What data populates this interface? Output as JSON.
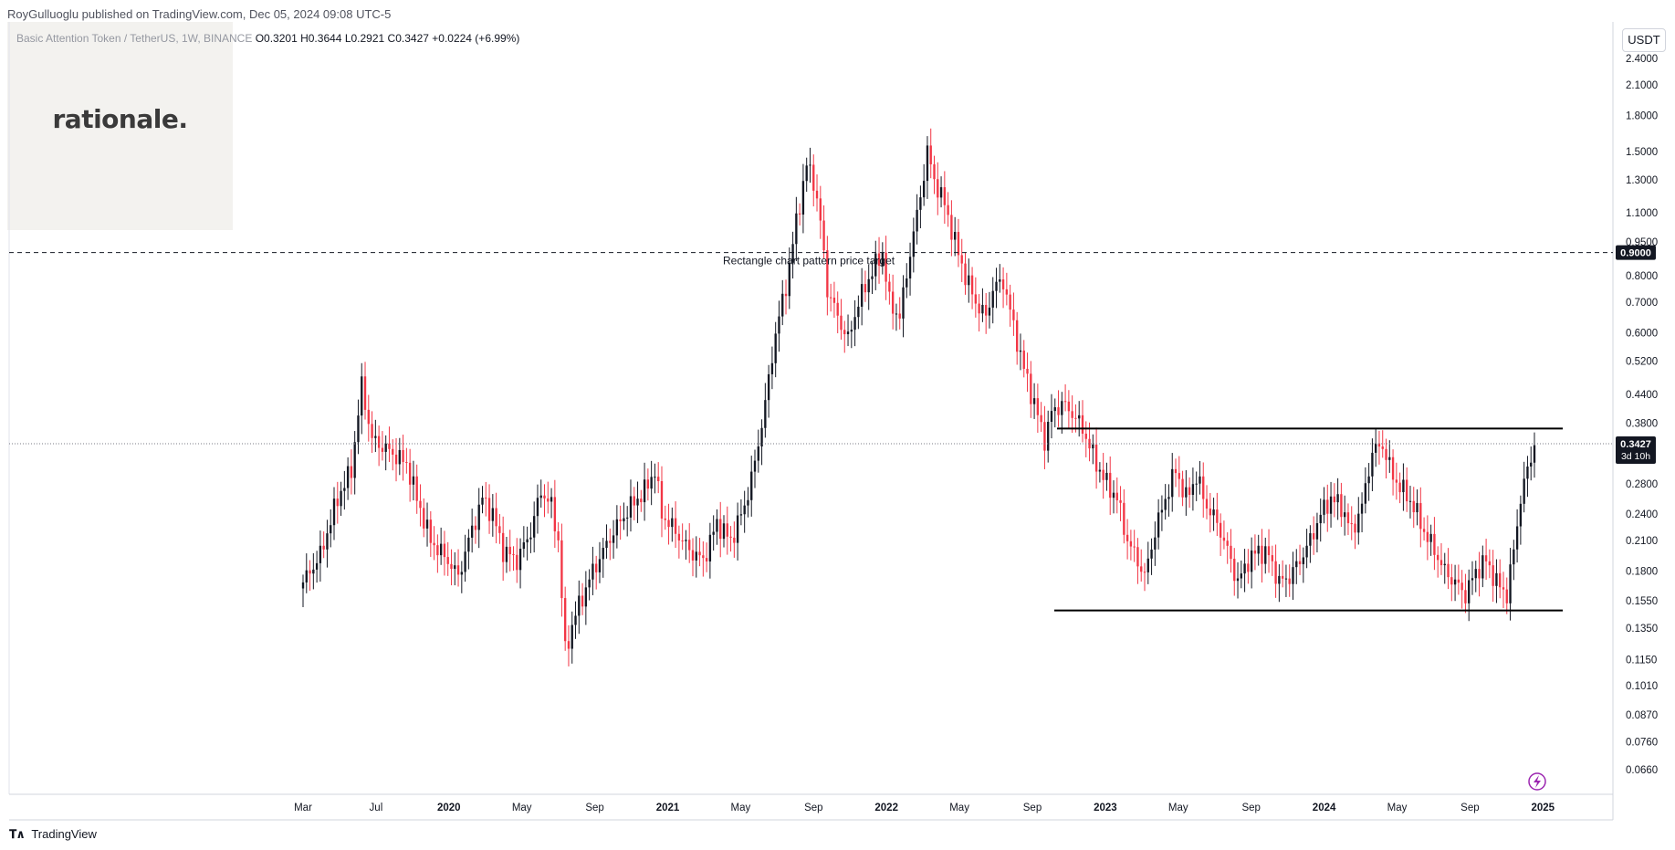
{
  "header": {
    "published_text": "RoyGulluoglu published on TradingView.com, Dec 05, 2024 09:08 UTC-5"
  },
  "logo": {
    "text": "rationale."
  },
  "legend": {
    "symbol": "Basic Attention Token / TetherUS, 1W, BINANCE",
    "open": "O0.3201",
    "high": "H0.3644",
    "low": "L0.2921",
    "close": "C0.3427",
    "change": "+0.0224 (+6.99%)"
  },
  "currency_label": "USDT",
  "footer": {
    "brand": "TradingView"
  },
  "colors": {
    "up": "#131722",
    "down": "#f23645",
    "grid": "#f0f3fa",
    "axis": "#131722"
  },
  "chart_data": {
    "type": "candlestick",
    "scale": "log",
    "y_ticks": [
      "2.4000",
      "2.1000",
      "1.8000",
      "1.5000",
      "1.3000",
      "1.1000",
      "0.9500",
      "0.8000",
      "0.7000",
      "0.6000",
      "0.5200",
      "0.4400",
      "0.3800",
      "0.2800",
      "0.2400",
      "0.2100",
      "0.1800",
      "0.1550",
      "0.1350",
      "0.1150",
      "0.1010",
      "0.0870",
      "0.0760",
      "0.0660"
    ],
    "x_ticks": [
      {
        "label": "Mar",
        "year": false
      },
      {
        "label": "Jul",
        "year": false
      },
      {
        "label": "2020",
        "year": true
      },
      {
        "label": "May",
        "year": false
      },
      {
        "label": "Sep",
        "year": false
      },
      {
        "label": "2021",
        "year": true
      },
      {
        "label": "May",
        "year": false
      },
      {
        "label": "Sep",
        "year": false
      },
      {
        "label": "2022",
        "year": true
      },
      {
        "label": "May",
        "year": false
      },
      {
        "label": "Sep",
        "year": false
      },
      {
        "label": "2023",
        "year": true
      },
      {
        "label": "May",
        "year": false
      },
      {
        "label": "Sep",
        "year": false
      },
      {
        "label": "2024",
        "year": true
      },
      {
        "label": "May",
        "year": false
      },
      {
        "label": "Sep",
        "year": false
      },
      {
        "label": "2025",
        "year": true
      }
    ],
    "price_target_line": {
      "value": 0.9,
      "label": "Rectangle chart pattern price target",
      "badge": "0.9000"
    },
    "current_price": {
      "value": 0.3427,
      "badge": "0.3427",
      "countdown": "3d 10h"
    },
    "rectangle": {
      "top": 0.37,
      "bottom": 0.1475
    },
    "path_keypoints": [
      [
        0,
        0.17
      ],
      [
        5,
        0.195
      ],
      [
        10,
        0.26
      ],
      [
        14,
        0.3
      ],
      [
        17,
        0.46
      ],
      [
        20,
        0.35
      ],
      [
        25,
        0.33
      ],
      [
        30,
        0.31
      ],
      [
        33,
        0.26
      ],
      [
        37,
        0.21
      ],
      [
        42,
        0.19
      ],
      [
        45,
        0.175
      ],
      [
        48,
        0.21
      ],
      [
        52,
        0.26
      ],
      [
        55,
        0.24
      ],
      [
        58,
        0.2
      ],
      [
        62,
        0.19
      ],
      [
        66,
        0.22
      ],
      [
        69,
        0.27
      ],
      [
        72,
        0.25
      ],
      [
        74,
        0.21
      ],
      [
        76,
        0.12
      ],
      [
        79,
        0.145
      ],
      [
        84,
        0.18
      ],
      [
        90,
        0.22
      ],
      [
        95,
        0.25
      ],
      [
        99,
        0.27
      ],
      [
        102,
        0.3
      ],
      [
        104,
        0.24
      ],
      [
        108,
        0.22
      ],
      [
        112,
        0.2
      ],
      [
        116,
        0.19
      ],
      [
        120,
        0.23
      ],
      [
        124,
        0.21
      ],
      [
        128,
        0.25
      ],
      [
        131,
        0.31
      ],
      [
        134,
        0.42
      ],
      [
        137,
        0.6
      ],
      [
        140,
        0.76
      ],
      [
        143,
        1.05
      ],
      [
        146,
        1.4
      ],
      [
        148,
        1.3
      ],
      [
        150,
        1.05
      ],
      [
        152,
        0.75
      ],
      [
        155,
        0.65
      ],
      [
        158,
        0.58
      ],
      [
        161,
        0.7
      ],
      [
        165,
        0.82
      ],
      [
        168,
        0.9
      ],
      [
        170,
        0.7
      ],
      [
        173,
        0.65
      ],
      [
        176,
        0.9
      ],
      [
        179,
        1.2
      ],
      [
        181,
        1.5
      ],
      [
        183,
        1.3
      ],
      [
        186,
        1.15
      ],
      [
        189,
        0.95
      ],
      [
        192,
        0.8
      ],
      [
        195,
        0.7
      ],
      [
        198,
        0.65
      ],
      [
        200,
        0.75
      ],
      [
        203,
        0.78
      ],
      [
        206,
        0.62
      ],
      [
        209,
        0.5
      ],
      [
        212,
        0.42
      ],
      [
        215,
        0.35
      ],
      [
        217,
        0.4
      ],
      [
        220,
        0.42
      ],
      [
        223,
        0.4
      ],
      [
        226,
        0.37
      ],
      [
        230,
        0.31
      ],
      [
        233,
        0.28
      ],
      [
        236,
        0.26
      ],
      [
        239,
        0.21
      ],
      [
        242,
        0.19
      ],
      [
        244,
        0.175
      ],
      [
        247,
        0.22
      ],
      [
        250,
        0.26
      ],
      [
        253,
        0.3
      ],
      [
        256,
        0.26
      ],
      [
        259,
        0.29
      ],
      [
        262,
        0.25
      ],
      [
        265,
        0.23
      ],
      [
        268,
        0.2
      ],
      [
        271,
        0.17
      ],
      [
        274,
        0.19
      ],
      [
        277,
        0.2
      ],
      [
        280,
        0.195
      ],
      [
        283,
        0.17
      ],
      [
        286,
        0.175
      ],
      [
        289,
        0.19
      ],
      [
        292,
        0.21
      ],
      [
        295,
        0.24
      ],
      [
        298,
        0.26
      ],
      [
        301,
        0.25
      ],
      [
        304,
        0.22
      ],
      [
        307,
        0.25
      ],
      [
        310,
        0.33
      ],
      [
        313,
        0.34
      ],
      [
        316,
        0.29
      ],
      [
        319,
        0.27
      ],
      [
        322,
        0.25
      ],
      [
        325,
        0.22
      ],
      [
        328,
        0.2
      ],
      [
        331,
        0.18
      ],
      [
        334,
        0.17
      ],
      [
        337,
        0.16
      ],
      [
        340,
        0.18
      ],
      [
        343,
        0.19
      ],
      [
        346,
        0.17
      ],
      [
        349,
        0.16
      ],
      [
        351,
        0.2
      ],
      [
        353,
        0.26
      ],
      [
        355,
        0.3
      ],
      [
        357,
        0.3427
      ]
    ]
  }
}
